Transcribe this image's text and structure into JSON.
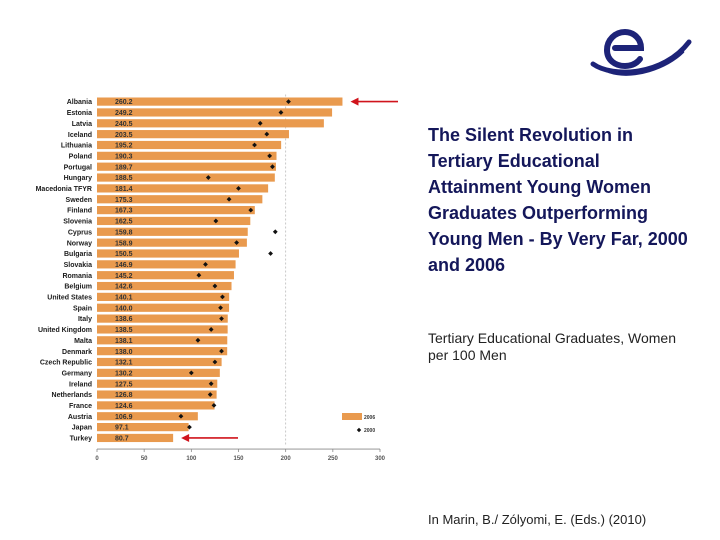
{
  "title": "The Silent Revolution in Tertiary Educational Attainment Young Women Graduates Outperforming Young Men - By Very Far, 2000 and 2006",
  "subtitle": "Tertiary Educational Graduates, Women per 100 Men",
  "citation": "In Marin, B./ Zólyomi, E. (Eds.) (2010)",
  "colors": {
    "bar": "#e99a4e",
    "marker": "#111111",
    "arrow": "#d0141c",
    "logo": "#1d2378",
    "title": "#14175a"
  },
  "chart_data": {
    "type": "bar",
    "orientation": "horizontal",
    "categories": [
      "Albania",
      "Estonia",
      "Latvia",
      "Iceland",
      "Lithuania",
      "Poland",
      "Portugal",
      "Hungary",
      "Macedonia TFYR",
      "Sweden",
      "Finland",
      "Slovenia",
      "Cyprus",
      "Norway",
      "Bulgaria",
      "Slovakia",
      "Romania",
      "Belgium",
      "United States",
      "Spain",
      "Italy",
      "United Kingdom",
      "Malta",
      "Denmark",
      "Czech Republic",
      "Germany",
      "Ireland",
      "Netherlands",
      "France",
      "Austria",
      "Japan",
      "Turkey"
    ],
    "series": [
      {
        "name": "2006",
        "values": [
          260.2,
          249.2,
          240.5,
          203.5,
          195.2,
          190.3,
          189.7,
          188.5,
          181.4,
          175.3,
          167.3,
          162.5,
          159.8,
          158.9,
          150.5,
          146.9,
          145.2,
          142.6,
          140.1,
          140.0,
          138.6,
          138.5,
          138.1,
          138.0,
          132.1,
          130.2,
          127.5,
          126.8,
          124.6,
          106.9,
          97.1,
          80.7
        ]
      },
      {
        "name": "2000",
        "values": [
          203,
          195,
          173,
          180,
          167,
          183,
          186,
          118,
          150,
          140,
          163,
          126,
          189,
          148,
          184,
          115,
          108,
          125,
          133,
          131,
          132,
          121,
          107,
          132,
          125,
          100,
          121,
          120,
          124,
          89,
          98,
          null
        ]
      }
    ],
    "value_labels": [
      "260.2",
      "249.2",
      "240.5",
      "203.5",
      "195.2",
      "190.3",
      "189.7",
      "188.5",
      "181.4",
      "175.3",
      "167.3",
      "162.5",
      "159.8",
      "158.9",
      "150.5",
      "146.9",
      "145.2",
      "142.6",
      "140.1",
      "140.0",
      "138.6",
      "138.5",
      "138.1",
      "138.0",
      "132.1",
      "130.2",
      "127.5",
      "126.8",
      "124.6",
      "106.9",
      "97.1",
      "80.7"
    ],
    "xticks": [
      "0",
      "50",
      "100",
      "150",
      "200",
      "250",
      "300"
    ],
    "xlim": [
      0,
      300
    ],
    "reference_line": 200,
    "legend": {
      "bar_label": "2006",
      "marker_label": "2000",
      "position": "bottom-right"
    },
    "xlabel": "",
    "ylabel": "",
    "arrows": [
      "Albania",
      "Turkey"
    ]
  }
}
